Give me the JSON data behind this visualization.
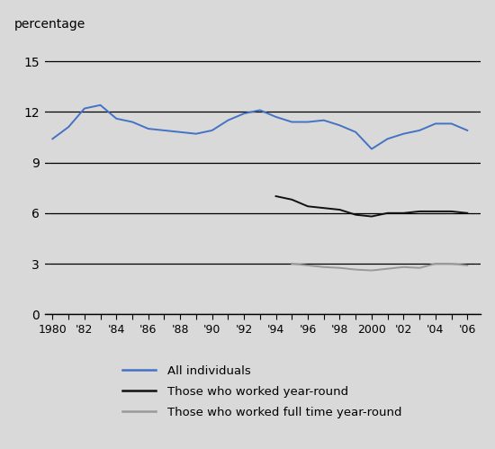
{
  "all_individuals": {
    "years": [
      1980,
      1981,
      1982,
      1983,
      1984,
      1985,
      1986,
      1987,
      1988,
      1989,
      1990,
      1991,
      1992,
      1993,
      1994,
      1995,
      1996,
      1997,
      1998,
      1999,
      2000,
      2001,
      2002,
      2003,
      2004,
      2005,
      2006
    ],
    "values": [
      10.4,
      11.1,
      12.2,
      12.4,
      11.6,
      11.4,
      11.0,
      10.9,
      10.8,
      10.7,
      10.9,
      11.5,
      11.9,
      12.1,
      11.7,
      11.4,
      11.4,
      11.5,
      11.2,
      10.8,
      9.8,
      10.4,
      10.7,
      10.9,
      11.3,
      11.3,
      10.9
    ],
    "color": "#4472C4",
    "label": "All individuals"
  },
  "year_round": {
    "years": [
      1994,
      1995,
      1996,
      1997,
      1998,
      1999,
      2000,
      2001,
      2002,
      2003,
      2004,
      2005,
      2006
    ],
    "values": [
      7.0,
      6.8,
      6.4,
      6.3,
      6.2,
      5.9,
      5.8,
      6.0,
      6.0,
      6.1,
      6.1,
      6.1,
      6.0
    ],
    "color": "#111111",
    "label": "Those who worked year-round"
  },
  "fulltime_year_round": {
    "years": [
      1995,
      1996,
      1997,
      1998,
      1999,
      2000,
      2001,
      2002,
      2003,
      2004,
      2005,
      2006
    ],
    "values": [
      3.0,
      2.9,
      2.8,
      2.75,
      2.65,
      2.6,
      2.7,
      2.8,
      2.75,
      3.0,
      3.0,
      2.9
    ],
    "color": "#999999",
    "label": "Those who worked full time year-round"
  },
  "background_color": "#d9d9d9",
  "yticks": [
    0,
    3,
    6,
    9,
    12,
    15
  ],
  "xtick_major_years": [
    1980,
    1982,
    1984,
    1986,
    1988,
    1990,
    1992,
    1994,
    1996,
    1998,
    2000,
    2002,
    2004,
    2006
  ],
  "xtick_labels": [
    "1980",
    "'82",
    "'84",
    "'86",
    "'88",
    "'90",
    "'92",
    "'94",
    "'96",
    "'98",
    "2000",
    "'02",
    "'04",
    "'06"
  ],
  "xtick_minor_years": [
    1981,
    1983,
    1985,
    1987,
    1989,
    1991,
    1993,
    1995,
    1997,
    1999,
    2001,
    2003,
    2005
  ],
  "ylabel": "percentage",
  "ylim": [
    0,
    16.5
  ],
  "xlim": [
    1979.5,
    2006.8
  ]
}
